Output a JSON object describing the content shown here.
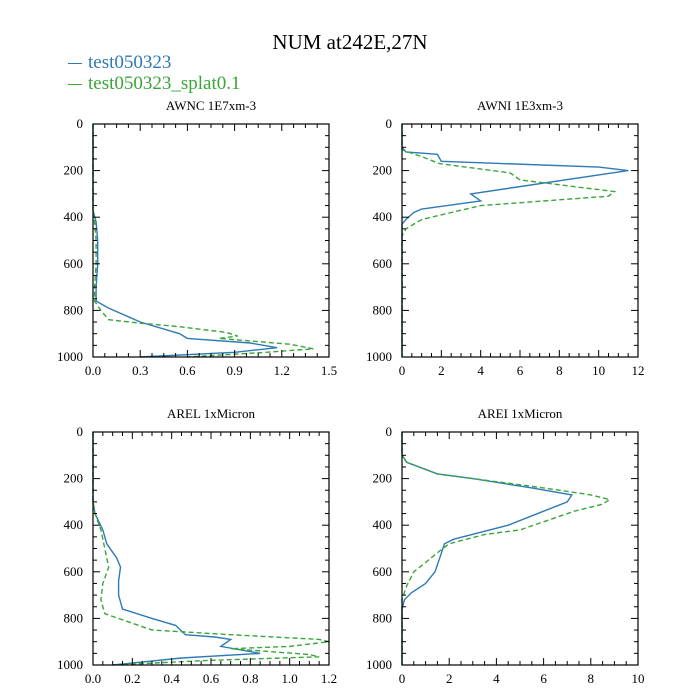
{
  "figure_title": "NUM at242E,27N",
  "legend": [
    {
      "label": "test050323",
      "color": "#2e7ab6",
      "dash": "solid"
    },
    {
      "label": "test050323_splat0.1",
      "color": "#3aa53a",
      "dash": "dashed"
    }
  ],
  "chart_data": [
    {
      "type": "line",
      "title": "AWNC  1E7xm-3",
      "xlim": [
        0,
        1.5
      ],
      "xticks": [
        0,
        0.3,
        0.6,
        0.9,
        1.2,
        1.5
      ],
      "xtick_labels": [
        "0.0",
        "0.3",
        "0.6",
        "0.9",
        "1.2",
        "1.5"
      ],
      "ylim": [
        1000,
        0
      ],
      "yticks": [
        0,
        200,
        400,
        600,
        800,
        1000
      ],
      "ytick_labels": [
        "0",
        "200",
        "400",
        "600",
        "800",
        "1000"
      ],
      "series": [
        {
          "name": "test050323",
          "points": [
            [
              0,
              0
            ],
            [
              0,
              100
            ],
            [
              0,
              200
            ],
            [
              0,
              300
            ],
            [
              0,
              370
            ],
            [
              0.02,
              420
            ],
            [
              0.03,
              500
            ],
            [
              0.03,
              600
            ],
            [
              0.02,
              700
            ],
            [
              0.02,
              760
            ],
            [
              0.1,
              790
            ],
            [
              0.3,
              850
            ],
            [
              0.55,
              900
            ],
            [
              0.6,
              920
            ],
            [
              1.0,
              940
            ],
            [
              1.17,
              960
            ],
            [
              0.9,
              980
            ],
            [
              0.3,
              1000
            ]
          ]
        },
        {
          "name": "test050323_splat0.1",
          "points": [
            [
              0,
              0
            ],
            [
              0,
              100
            ],
            [
              0,
              200
            ],
            [
              0,
              300
            ],
            [
              0,
              370
            ],
            [
              0.01,
              420
            ],
            [
              0.02,
              500
            ],
            [
              0.02,
              600
            ],
            [
              0.01,
              700
            ],
            [
              0.01,
              760
            ],
            [
              0.05,
              800
            ],
            [
              0.1,
              840
            ],
            [
              0.3,
              855
            ],
            [
              0.55,
              870
            ],
            [
              0.85,
              895
            ],
            [
              0.92,
              910
            ],
            [
              0.8,
              920
            ],
            [
              1.25,
              945
            ],
            [
              1.4,
              965
            ],
            [
              1.1,
              980
            ],
            [
              0.6,
              1000
            ]
          ]
        }
      ]
    },
    {
      "type": "line",
      "title": "AWNI  1E3xm-3",
      "xlim": [
        0,
        12
      ],
      "xticks": [
        0,
        2,
        4,
        6,
        8,
        10,
        12
      ],
      "xtick_labels": [
        "0",
        "2",
        "4",
        "6",
        "8",
        "10",
        "12"
      ],
      "ylim": [
        1000,
        0
      ],
      "yticks": [
        0,
        200,
        400,
        600,
        800,
        1000
      ],
      "ytick_labels": [
        "0",
        "200",
        "400",
        "600",
        "800",
        "1000"
      ],
      "series": [
        {
          "name": "test050323",
          "points": [
            [
              0,
              0
            ],
            [
              0,
              100
            ],
            [
              0.2,
              120
            ],
            [
              1.8,
              130
            ],
            [
              2.0,
              160
            ],
            [
              10.0,
              185
            ],
            [
              11.5,
              200
            ],
            [
              3.5,
              300
            ],
            [
              4.0,
              330
            ],
            [
              1.0,
              365
            ],
            [
              0.6,
              380
            ],
            [
              0.2,
              410
            ],
            [
              0,
              430
            ],
            [
              0,
              500
            ],
            [
              0,
              600
            ],
            [
              0,
              700
            ],
            [
              0,
              800
            ],
            [
              0,
              900
            ],
            [
              0,
              1000
            ]
          ]
        },
        {
          "name": "test050323_splat0.1",
          "points": [
            [
              0,
              0
            ],
            [
              0,
              110
            ],
            [
              0.3,
              120
            ],
            [
              1.0,
              140
            ],
            [
              1.9,
              170
            ],
            [
              5.5,
              210
            ],
            [
              6.0,
              240
            ],
            [
              10.8,
              290
            ],
            [
              10.5,
              310
            ],
            [
              4.0,
              350
            ],
            [
              2.5,
              380
            ],
            [
              1.0,
              410
            ],
            [
              0.2,
              450
            ],
            [
              0,
              480
            ],
            [
              0,
              600
            ],
            [
              0,
              700
            ],
            [
              0,
              800
            ],
            [
              0,
              900
            ],
            [
              0,
              1000
            ]
          ]
        }
      ]
    },
    {
      "type": "line",
      "title": "AREL  1xMicron",
      "xlim": [
        0,
        1.2
      ],
      "xticks": [
        0,
        0.2,
        0.4,
        0.6,
        0.8,
        1.0,
        1.2
      ],
      "xtick_labels": [
        "0.0",
        "0.2",
        "0.4",
        "0.6",
        "0.8",
        "1.0",
        "1.2"
      ],
      "ylim": [
        1000,
        0
      ],
      "yticks": [
        0,
        200,
        400,
        600,
        800,
        1000
      ],
      "ytick_labels": [
        "0",
        "200",
        "400",
        "600",
        "800",
        "1000"
      ],
      "series": [
        {
          "name": "test050323",
          "points": [
            [
              0,
              0
            ],
            [
              0,
              200
            ],
            [
              0,
              300
            ],
            [
              0.01,
              350
            ],
            [
              0.05,
              420
            ],
            [
              0.07,
              480
            ],
            [
              0.12,
              540
            ],
            [
              0.14,
              580
            ],
            [
              0.13,
              640
            ],
            [
              0.13,
              700
            ],
            [
              0.15,
              760
            ],
            [
              0.3,
              800
            ],
            [
              0.42,
              830
            ],
            [
              0.47,
              870
            ],
            [
              0.62,
              880
            ],
            [
              0.7,
              890
            ],
            [
              0.65,
              920
            ],
            [
              0.85,
              950
            ],
            [
              0.45,
              970
            ],
            [
              0.1,
              1000
            ]
          ]
        },
        {
          "name": "test050323_splat0.1",
          "points": [
            [
              0,
              0
            ],
            [
              0,
              200
            ],
            [
              0,
              300
            ],
            [
              0.01,
              350
            ],
            [
              0.04,
              420
            ],
            [
              0.06,
              500
            ],
            [
              0.08,
              580
            ],
            [
              0.05,
              650
            ],
            [
              0.04,
              720
            ],
            [
              0.06,
              780
            ],
            [
              0.3,
              850
            ],
            [
              0.7,
              870
            ],
            [
              1.15,
              890
            ],
            [
              1.2,
              900
            ],
            [
              1.0,
              920
            ],
            [
              0.7,
              930
            ],
            [
              1.1,
              955
            ],
            [
              1.15,
              965
            ],
            [
              0.6,
              980
            ],
            [
              0.1,
              1000
            ]
          ]
        }
      ]
    },
    {
      "type": "line",
      "title": "AREI  1xMicron",
      "xlim": [
        0,
        10
      ],
      "xticks": [
        0,
        2,
        4,
        6,
        8,
        10
      ],
      "xtick_labels": [
        "0",
        "2",
        "4",
        "6",
        "8",
        "10"
      ],
      "ylim": [
        1000,
        0
      ],
      "yticks": [
        0,
        200,
        400,
        600,
        800,
        1000
      ],
      "ytick_labels": [
        "0",
        "200",
        "400",
        "600",
        "800",
        "1000"
      ],
      "series": [
        {
          "name": "test050323",
          "points": [
            [
              0,
              0
            ],
            [
              0,
              100
            ],
            [
              0.2,
              130
            ],
            [
              1.5,
              180
            ],
            [
              3.0,
              200
            ],
            [
              5.5,
              240
            ],
            [
              7.2,
              270
            ],
            [
              7.0,
              300
            ],
            [
              6.0,
              340
            ],
            [
              4.5,
              400
            ],
            [
              2.2,
              460
            ],
            [
              1.8,
              480
            ],
            [
              1.6,
              540
            ],
            [
              1.4,
              600
            ],
            [
              1.0,
              650
            ],
            [
              0.4,
              690
            ],
            [
              0.1,
              720
            ],
            [
              0,
              760
            ],
            [
              0,
              800
            ],
            [
              0,
              900
            ],
            [
              0,
              1000
            ]
          ]
        },
        {
          "name": "test050323_splat0.1",
          "points": [
            [
              0,
              0
            ],
            [
              0,
              100
            ],
            [
              0.2,
              130
            ],
            [
              1.5,
              180
            ],
            [
              3.0,
              200
            ],
            [
              6.0,
              240
            ],
            [
              8.0,
              270
            ],
            [
              8.8,
              290
            ],
            [
              8.5,
              310
            ],
            [
              7.3,
              340
            ],
            [
              5.0,
              420
            ],
            [
              3.5,
              440
            ],
            [
              2.0,
              480
            ],
            [
              1.6,
              510
            ],
            [
              1.0,
              560
            ],
            [
              0.5,
              600
            ],
            [
              0.2,
              660
            ],
            [
              0,
              720
            ],
            [
              0,
              800
            ],
            [
              0,
              900
            ],
            [
              0,
              1000
            ]
          ]
        }
      ]
    }
  ]
}
